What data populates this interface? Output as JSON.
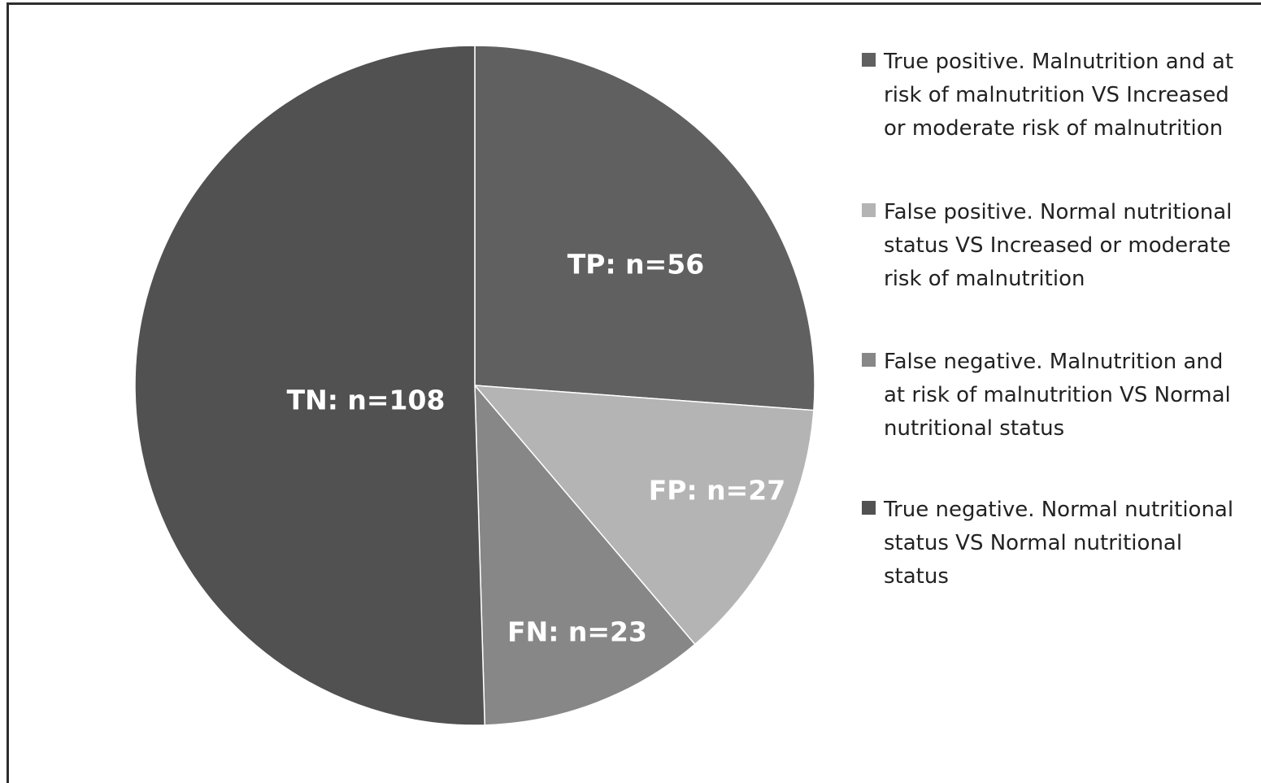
{
  "chart_data": {
    "type": "pie",
    "title": "",
    "slices": [
      {
        "key": "TP",
        "label": "TP: n=56",
        "value": 56,
        "color": "#606060",
        "legend": "True positive. Malnutrition and at risk of malnutrition VS Increased or moderate risk of malnutrition"
      },
      {
        "key": "FP",
        "label": "FP: n=27",
        "value": 27,
        "color": "#b4b4b4",
        "legend": "False positive. Normal nutritional status VS Increased or moderate risk of malnutrition"
      },
      {
        "key": "FN",
        "label": "FN: n=23",
        "value": 23,
        "color": "#878787",
        "legend": "False negative. Malnutrition and at risk of malnutrition VS Normal nutritional status"
      },
      {
        "key": "TN",
        "label": "TN: n=108",
        "value": 108,
        "color": "#515151",
        "legend": "True negative. Normal nutritional status VS Normal nutritional status"
      }
    ],
    "legend_position": "right"
  }
}
